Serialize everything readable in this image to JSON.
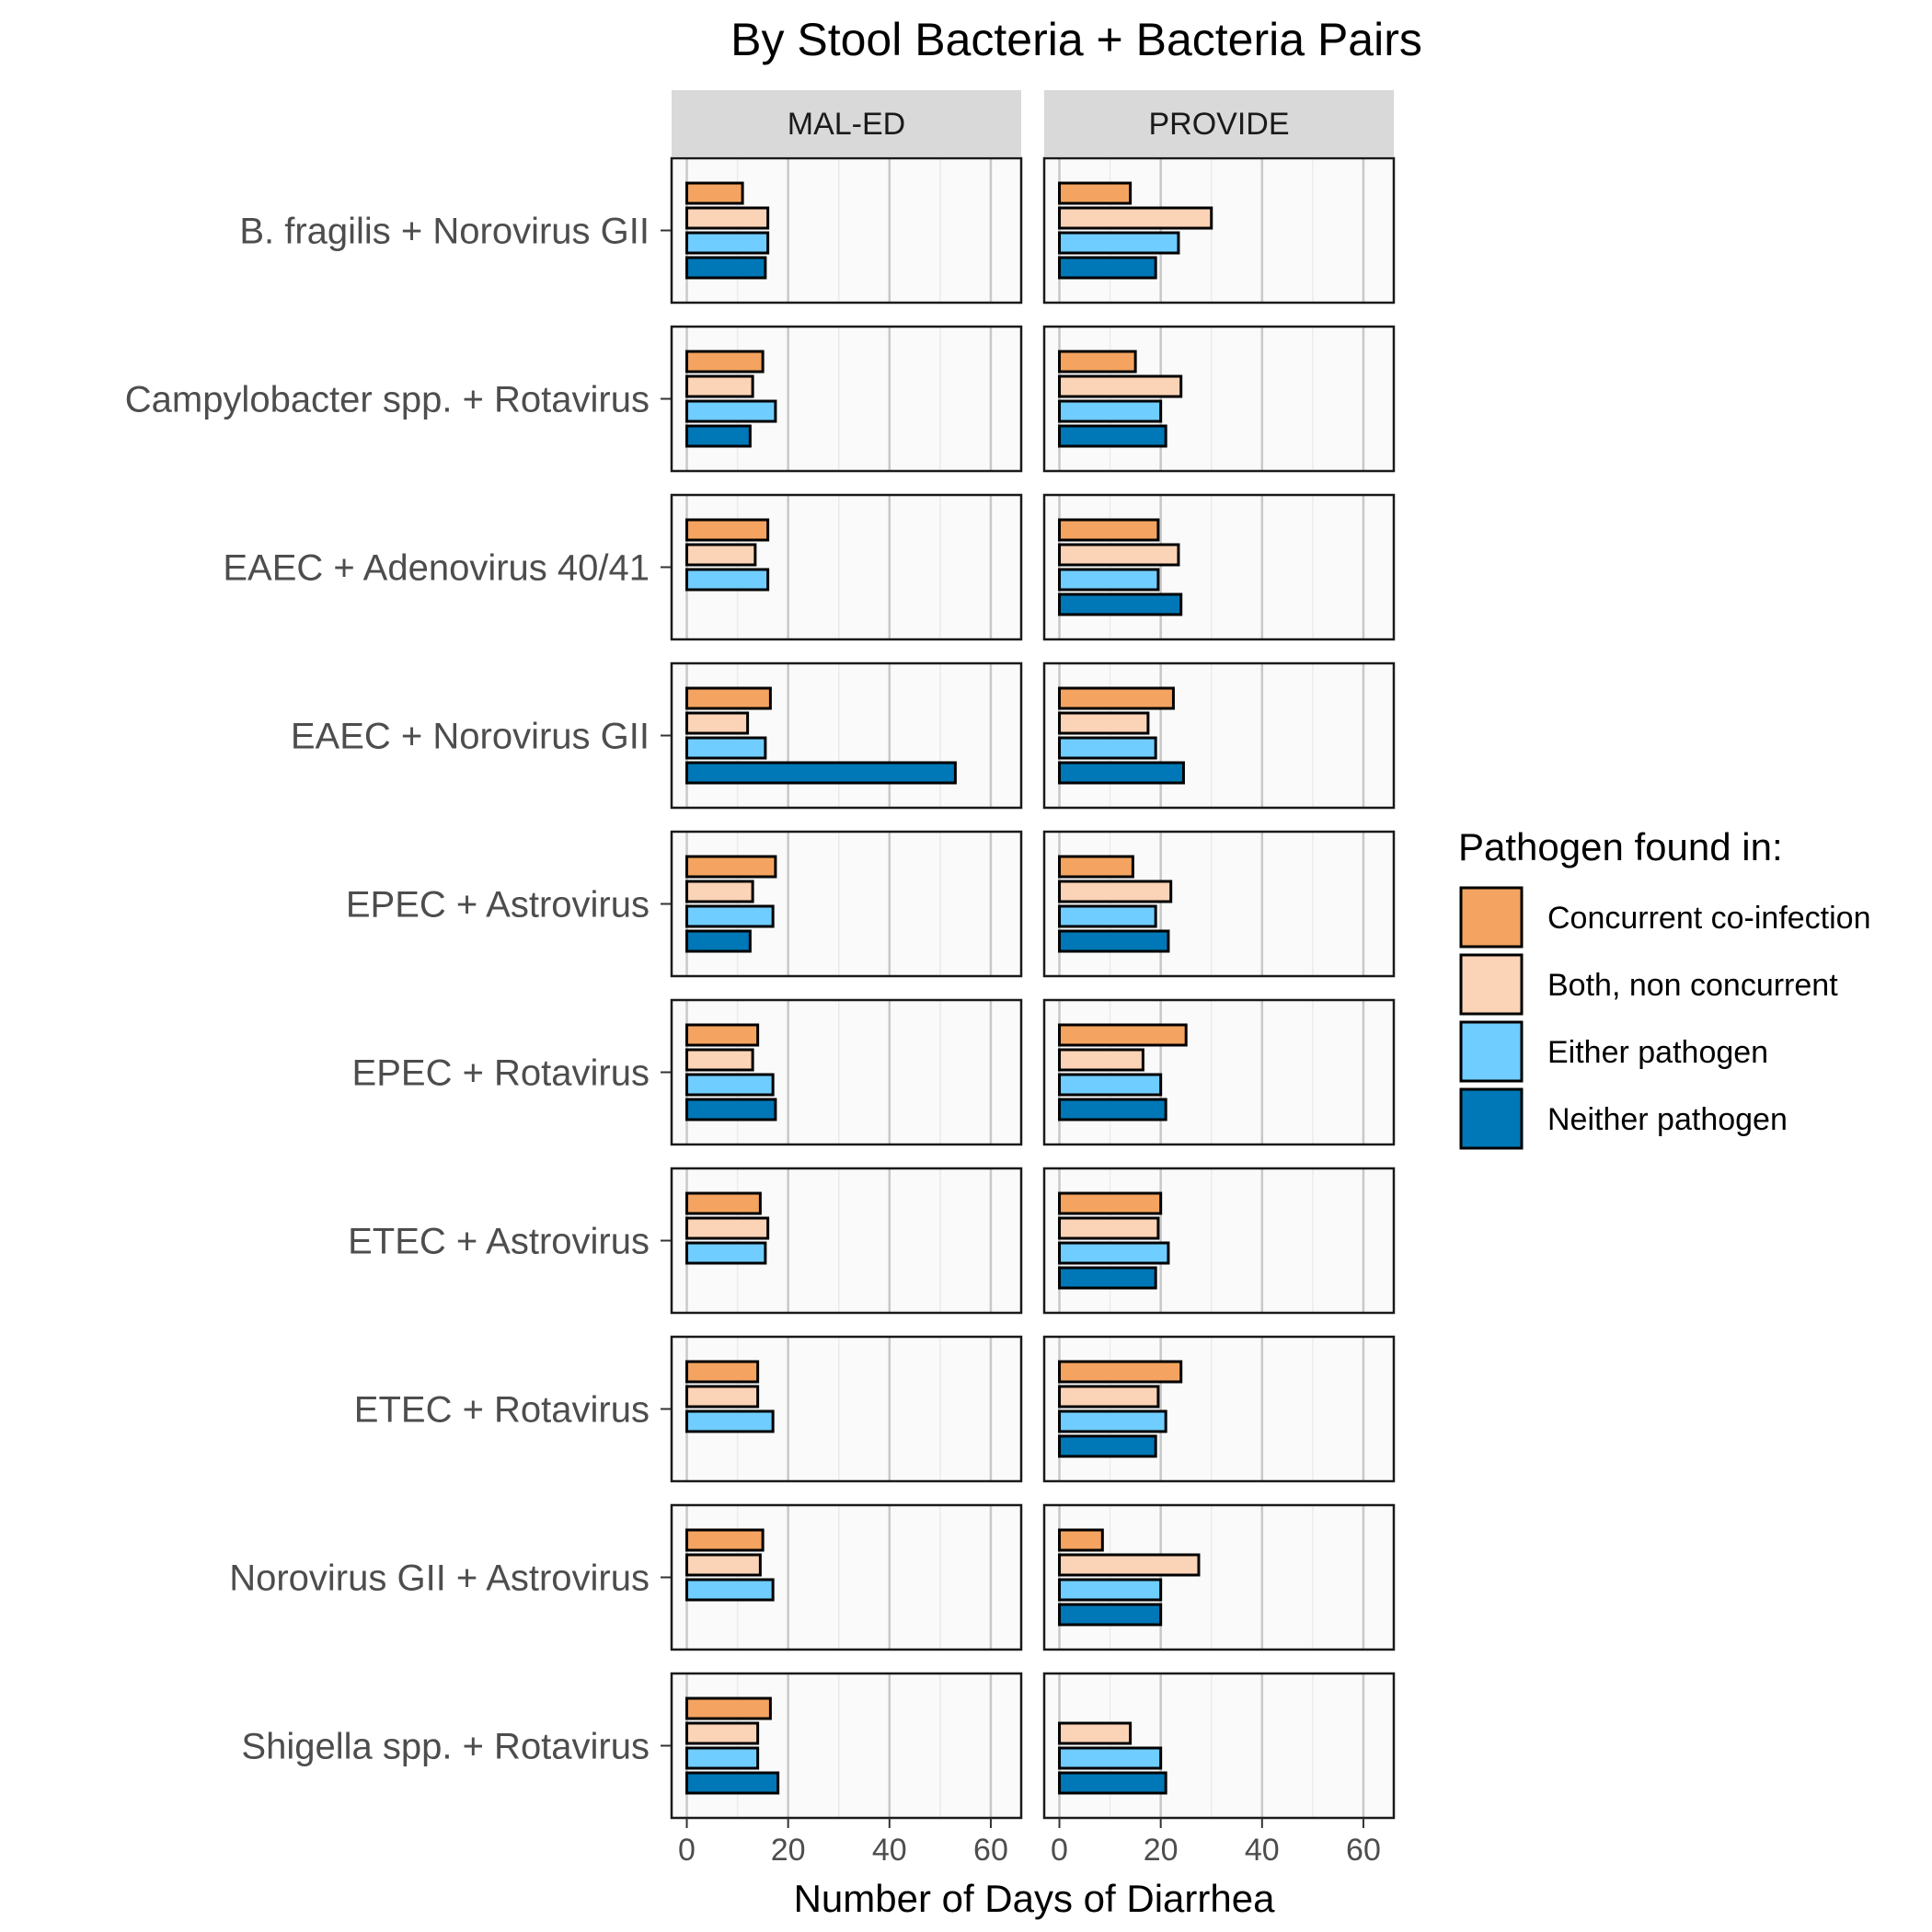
{
  "chart_data": {
    "type": "bar",
    "orientation": "horizontal",
    "title": "By Stool Bacteria + Bacteria Pairs",
    "xlabel": "Number of Days of Diarrhea",
    "ylabel": "",
    "xlim": [
      -3,
      66
    ],
    "xticks": [
      0,
      20,
      40,
      60
    ],
    "grid": true,
    "legend": {
      "title": "Pathogen found in:",
      "placement": "right"
    },
    "facets": [
      "MAL-ED",
      "PROVIDE"
    ],
    "categories": [
      "B. fragilis + Norovirus GII",
      "Campylobacter spp. + Rotavirus",
      "EAEC + Adenovirus 40/41",
      "EAEC + Norovirus GII",
      "EPEC + Astrovirus",
      "EPEC + Rotavirus",
      "ETEC + Astrovirus",
      "ETEC + Rotavirus",
      "Norovirus GII + Astrovirus",
      "Shigella spp. + Rotavirus"
    ],
    "series": [
      {
        "name": "Concurrent co-infection",
        "color": "#F4A460",
        "values": {
          "MAL-ED": [
            11,
            15,
            16,
            16.5,
            17.5,
            14,
            14.5,
            14,
            15,
            16.5
          ],
          "PROVIDE": [
            14,
            15,
            19.5,
            22.5,
            14.5,
            25,
            20,
            24,
            8.5,
            null
          ]
        }
      },
      {
        "name": "Both, non concurrent",
        "color": "#FBD3B6",
        "values": {
          "MAL-ED": [
            16,
            13,
            13.5,
            12,
            13,
            13,
            16,
            14,
            14.5,
            14
          ],
          "PROVIDE": [
            30,
            24,
            23.5,
            17.5,
            22,
            16.5,
            19.5,
            19.5,
            27.5,
            14
          ]
        }
      },
      {
        "name": "Either pathogen",
        "color": "#70CDFF",
        "values": {
          "MAL-ED": [
            16,
            17.5,
            16,
            15.5,
            17,
            17,
            15.5,
            17,
            17,
            14
          ],
          "PROVIDE": [
            23.5,
            20,
            19.5,
            19,
            19,
            20,
            21.5,
            21,
            20,
            20
          ]
        }
      },
      {
        "name": "Neither pathogen",
        "color": "#0077B6",
        "values": {
          "MAL-ED": [
            15.5,
            12.5,
            null,
            53,
            12.5,
            17.5,
            null,
            null,
            null,
            18
          ],
          "PROVIDE": [
            19,
            21,
            24,
            24.5,
            21.5,
            21,
            19,
            19,
            20,
            21
          ]
        }
      }
    ]
  }
}
